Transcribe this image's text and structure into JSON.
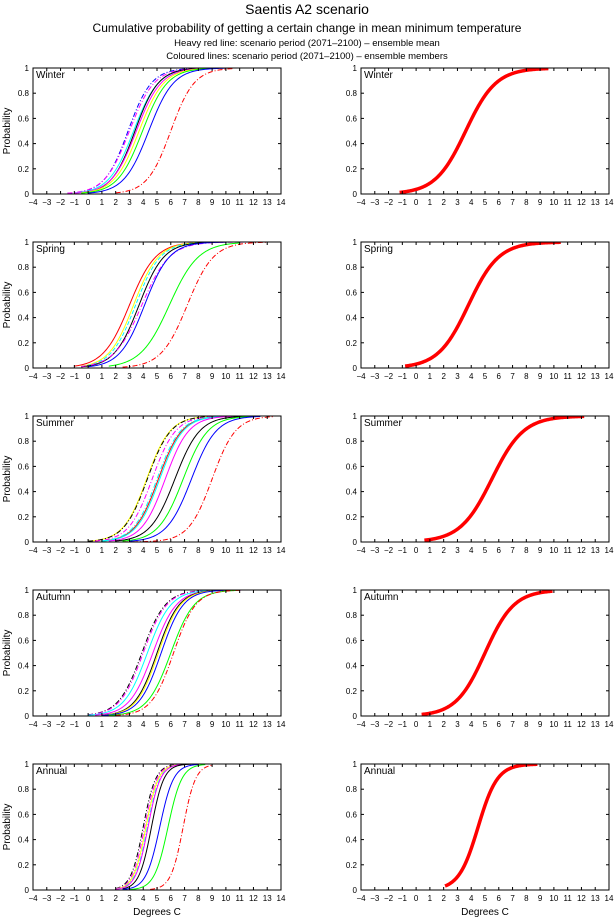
{
  "header": {
    "title": "Saentis A2 scenario",
    "subtitle": "Cumulative probability of getting a certain change in mean minimum temperature",
    "note1": "Heavy red line: scenario period (2071–2100) – ensemble mean",
    "note2": "Coloured lines: scenario period (2071–2100) – ensemble members"
  },
  "chart_data": {
    "type": "line",
    "title": "Saentis A2 scenario",
    "xlabel": "Degrees C",
    "ylabel": "Probability",
    "xlim": [
      -4,
      14
    ],
    "ylim": [
      0,
      1
    ],
    "x_ticks": [
      "−4",
      "−3",
      "−2",
      "−1",
      "0",
      "1",
      "2",
      "3",
      "4",
      "5",
      "6",
      "7",
      "8",
      "9",
      "10",
      "11",
      "12",
      "13",
      "14"
    ],
    "y_ticks": [
      "0",
      "0.2",
      "0.4",
      "0.6",
      "0.8",
      "1"
    ],
    "grid": false,
    "mean_color": "#ff0000",
    "curve_model": "logistic CDF: p = 1/(1+exp(-(x-median)/scale)), clipped to [start,end]",
    "panels": [
      {
        "season": "Winter",
        "members": [
          {
            "color": "#0000ff",
            "style": "dashdot",
            "median": 2.9,
            "scale": 0.85,
            "start": -1.5,
            "end": 7.5
          },
          {
            "color": "#ff00ff",
            "style": "dashdot",
            "median": 3.0,
            "scale": 0.9,
            "start": -1.5,
            "end": 8
          },
          {
            "color": "#00ffff",
            "style": "solid",
            "median": 3.3,
            "scale": 0.9,
            "start": -1,
            "end": 8
          },
          {
            "color": "#000000",
            "style": "solid",
            "median": 3.4,
            "scale": 0.85,
            "start": -0.5,
            "end": 8
          },
          {
            "color": "#ff00ff",
            "style": "solid",
            "median": 3.5,
            "scale": 0.9,
            "start": -1,
            "end": 8.5
          },
          {
            "color": "#ffff00",
            "style": "solid",
            "median": 3.7,
            "scale": 0.9,
            "start": -0.5,
            "end": 8.5
          },
          {
            "color": "#00ff00",
            "style": "solid",
            "median": 3.95,
            "scale": 0.9,
            "start": -0.5,
            "end": 9
          },
          {
            "color": "#0000ff",
            "style": "solid",
            "median": 4.4,
            "scale": 0.9,
            "start": 0,
            "end": 10
          },
          {
            "color": "#ff0000",
            "style": "dashdot",
            "median": 6.0,
            "scale": 0.85,
            "start": 2,
            "end": 10.5
          }
        ],
        "mean": {
          "median": 3.6,
          "scale": 1.1,
          "start": -1.2,
          "end": 9.6
        }
      },
      {
        "season": "Spring",
        "members": [
          {
            "color": "#ff0000",
            "style": "solid",
            "median": 3.0,
            "scale": 0.95,
            "start": -1,
            "end": 9
          },
          {
            "color": "#ffff00",
            "style": "solid",
            "median": 3.3,
            "scale": 0.9,
            "start": -0.5,
            "end": 9
          },
          {
            "color": "#00ffff",
            "style": "dashed",
            "median": 3.45,
            "scale": 0.9,
            "start": -0.5,
            "end": 10.5
          },
          {
            "color": "#000000",
            "style": "solid",
            "median": 3.7,
            "scale": 0.9,
            "start": -0.5,
            "end": 9.5
          },
          {
            "color": "#ff00ff",
            "style": "dashdot",
            "median": 3.9,
            "scale": 1.0,
            "start": -0.5,
            "end": 12.5
          },
          {
            "color": "#0000ff",
            "style": "solid",
            "median": 4.1,
            "scale": 0.9,
            "start": 0,
            "end": 10
          },
          {
            "color": "#00ff00",
            "style": "solid",
            "median": 5.9,
            "scale": 1.05,
            "start": 1.5,
            "end": 11
          },
          {
            "color": "#ff0000",
            "style": "dashdot",
            "median": 7.2,
            "scale": 0.95,
            "start": 2.5,
            "end": 13
          }
        ],
        "mean": {
          "median": 3.8,
          "scale": 1.1,
          "start": -0.8,
          "end": 10.5
        }
      },
      {
        "season": "Summer",
        "members": [
          {
            "color": "#ffff00",
            "style": "solid",
            "median": 4.25,
            "scale": 0.85,
            "start": 0,
            "end": 9
          },
          {
            "color": "#000000",
            "style": "dashdot",
            "median": 4.3,
            "scale": 0.85,
            "start": 0,
            "end": 9
          },
          {
            "color": "#ff00ff",
            "style": "dashdot",
            "median": 4.65,
            "scale": 0.85,
            "start": 0.5,
            "end": 10
          },
          {
            "color": "#ff0000",
            "style": "solid",
            "median": 5.1,
            "scale": 0.85,
            "start": 1,
            "end": 10.5
          },
          {
            "color": "#00ffff",
            "style": "solid",
            "median": 5.2,
            "scale": 0.85,
            "start": 1,
            "end": 10.5
          },
          {
            "color": "#00ffff",
            "style": "dashdot",
            "median": 5.0,
            "scale": 0.85,
            "start": 1,
            "end": 10.5
          },
          {
            "color": "#ff00ff",
            "style": "solid",
            "median": 5.6,
            "scale": 0.85,
            "start": 1.5,
            "end": 11
          },
          {
            "color": "#000000",
            "style": "solid",
            "median": 6.3,
            "scale": 0.9,
            "start": 2,
            "end": 11.5
          },
          {
            "color": "#00ff00",
            "style": "solid",
            "median": 6.9,
            "scale": 0.9,
            "start": 2.5,
            "end": 12
          },
          {
            "color": "#0000ff",
            "style": "solid",
            "median": 7.5,
            "scale": 0.9,
            "start": 3,
            "end": 12.5
          },
          {
            "color": "#ff0000",
            "style": "dashdot",
            "median": 9.0,
            "scale": 0.85,
            "start": -4,
            "end": 13.5
          }
        ],
        "mean": {
          "median": 5.5,
          "scale": 1.15,
          "start": 0.6,
          "end": 12.2
        }
      },
      {
        "season": "Autumn",
        "members": [
          {
            "color": "#000000",
            "style": "dashdot",
            "median": 3.9,
            "scale": 0.85,
            "start": 0,
            "end": 9
          },
          {
            "color": "#ff00ff",
            "style": "dashdot",
            "median": 4.0,
            "scale": 0.85,
            "start": 0,
            "end": 9
          },
          {
            "color": "#00ffff",
            "style": "solid",
            "median": 4.3,
            "scale": 0.85,
            "start": 0,
            "end": 13.5
          },
          {
            "color": "#ff00ff",
            "style": "solid",
            "median": 4.7,
            "scale": 0.85,
            "start": 0.5,
            "end": 13.5
          },
          {
            "color": "#000000",
            "style": "solid",
            "median": 5.0,
            "scale": 0.8,
            "start": 1,
            "end": 10
          },
          {
            "color": "#ffff00",
            "style": "solid",
            "median": 5.1,
            "scale": 0.8,
            "start": 1,
            "end": 10
          },
          {
            "color": "#0000ff",
            "style": "solid",
            "median": 5.3,
            "scale": 0.8,
            "start": 1,
            "end": 10.5
          },
          {
            "color": "#00ff00",
            "style": "solid",
            "median": 6.0,
            "scale": 0.85,
            "start": 1.5,
            "end": 11
          },
          {
            "color": "#ff0000",
            "style": "dashdot",
            "median": 6.2,
            "scale": 0.8,
            "start": 2,
            "end": 11
          }
        ],
        "mean": {
          "median": 5.0,
          "scale": 1.05,
          "start": 0.4,
          "end": 9.9
        }
      },
      {
        "season": "Annual",
        "members": [
          {
            "color": "#000000",
            "style": "dashdot",
            "median": 4.0,
            "scale": 0.45,
            "start": 2,
            "end": 7
          },
          {
            "color": "#ff00ff",
            "style": "dashdot",
            "median": 4.1,
            "scale": 0.45,
            "start": 2,
            "end": 7
          },
          {
            "color": "#ffff00",
            "style": "solid",
            "median": 4.2,
            "scale": 0.45,
            "start": 2,
            "end": 7
          },
          {
            "color": "#00ffff",
            "style": "dashdot",
            "median": 4.3,
            "scale": 0.45,
            "start": 2,
            "end": 13.8
          },
          {
            "color": "#ff00ff",
            "style": "solid",
            "median": 4.35,
            "scale": 0.45,
            "start": 2,
            "end": 7.5
          },
          {
            "color": "#000000",
            "style": "solid",
            "median": 4.6,
            "scale": 0.45,
            "start": 2.5,
            "end": 7.5
          },
          {
            "color": "#0000ff",
            "style": "solid",
            "median": 5.2,
            "scale": 0.5,
            "start": 2.5,
            "end": 8
          },
          {
            "color": "#00ff00",
            "style": "solid",
            "median": 5.8,
            "scale": 0.5,
            "start": 3,
            "end": 8.5
          },
          {
            "color": "#ff0000",
            "style": "dashdot",
            "median": 6.9,
            "scale": 0.45,
            "start": 4.5,
            "end": 9
          }
        ],
        "mean": {
          "median": 4.5,
          "scale": 0.7,
          "start": 2.1,
          "end": 8.8
        }
      }
    ]
  }
}
